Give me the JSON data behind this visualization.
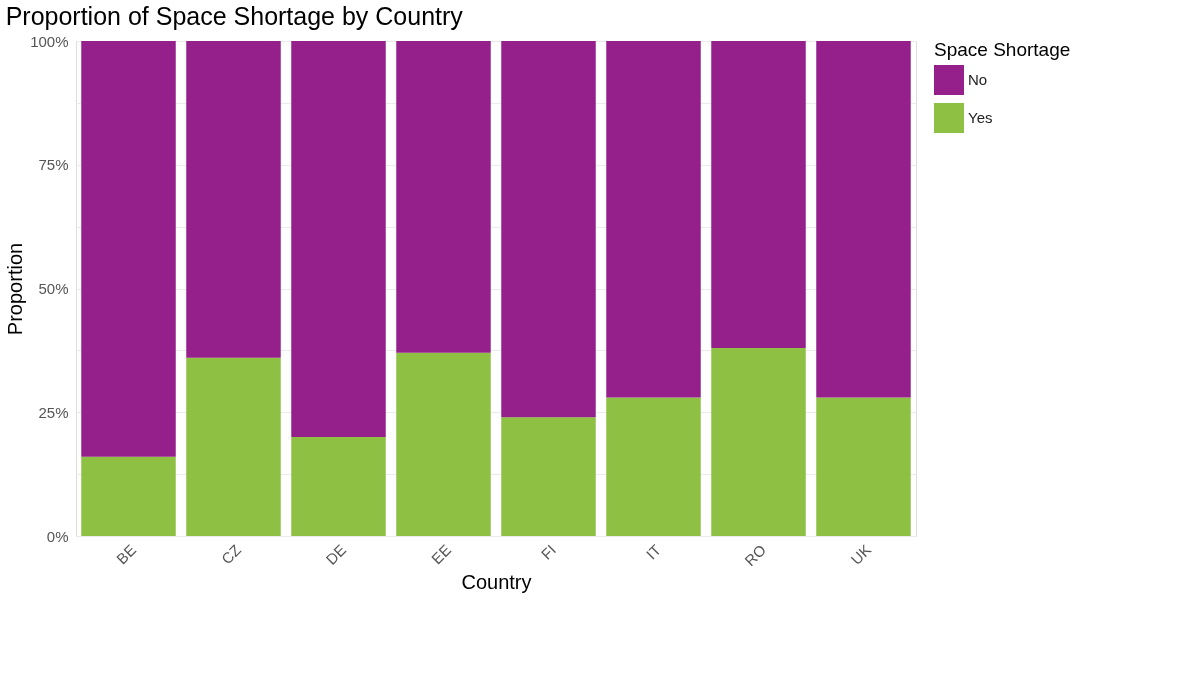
{
  "chart_data": {
    "type": "bar",
    "title": "Proportion of Space Shortage by Country",
    "xlabel": "Country",
    "ylabel": "Proportion",
    "legend_title": "Space Shortage",
    "categories": [
      "BE",
      "CZ",
      "DE",
      "EE",
      "FI",
      "IT",
      "RO",
      "UK"
    ],
    "stacked": true,
    "series": [
      {
        "name": "Yes",
        "color": "#8dc043",
        "values": [
          0.16,
          0.36,
          0.2,
          0.37,
          0.24,
          0.28,
          0.38,
          0.28
        ]
      },
      {
        "name": "No",
        "color": "#951f8b",
        "values": [
          0.84,
          0.64,
          0.8,
          0.63,
          0.76,
          0.72,
          0.62,
          0.72
        ]
      }
    ],
    "ylim": [
      0,
      1
    ],
    "yticks": [
      {
        "value": 0,
        "label": "0%"
      },
      {
        "value": 0.125,
        "label": null
      },
      {
        "value": 0.25,
        "label": "25%"
      },
      {
        "value": 0.375,
        "label": null
      },
      {
        "value": 0.5,
        "label": "50%"
      },
      {
        "value": 0.625,
        "label": null
      },
      {
        "value": 0.75,
        "label": "75%"
      },
      {
        "value": 0.875,
        "label": null
      },
      {
        "value": 1,
        "label": "100%"
      }
    ],
    "grid": true,
    "legend": "right"
  }
}
